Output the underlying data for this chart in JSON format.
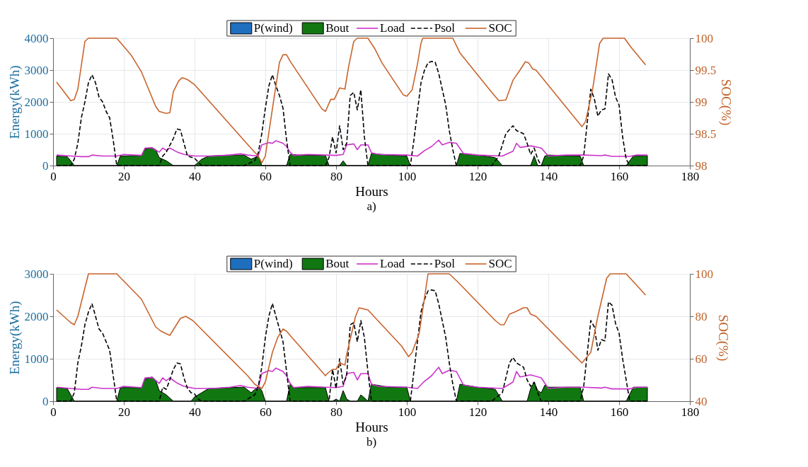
{
  "chart_data": [
    {
      "type": "line",
      "xlabel": "Hours",
      "ylabel": "Energy(kWh)",
      "y2label": "SOC(%)",
      "annotations": [
        "a)"
      ],
      "xlim": [
        0,
        180
      ],
      "xticks": [
        0,
        20,
        40,
        60,
        80,
        100,
        120,
        140,
        160,
        180
      ],
      "ylim": [
        0,
        4000
      ],
      "yticks": [
        0,
        1000,
        2000,
        3000,
        4000
      ],
      "y2lim": [
        98,
        100
      ],
      "y2ticks": [
        98,
        98.5,
        99,
        99.5,
        100
      ],
      "grid": true,
      "legend": "top",
      "series": [
        {
          "name": "P(wind)",
          "type": "area",
          "color": "#1f6fbf"
        },
        {
          "name": "Bout",
          "type": "area",
          "color": "#117711",
          "x": [
            1,
            4,
            5,
            6,
            18,
            19,
            25,
            26,
            28,
            29,
            30,
            32,
            34,
            40,
            42,
            44,
            50,
            54,
            56,
            58,
            59,
            66,
            67,
            70,
            77,
            78,
            81,
            82,
            83,
            89,
            90,
            95,
            100,
            101,
            114,
            115,
            120,
            125,
            127,
            135,
            136,
            137,
            138,
            139,
            140,
            149,
            150,
            162,
            164,
            168
          ],
          "values": [
            300,
            280,
            150,
            0,
            0,
            300,
            320,
            520,
            560,
            500,
            250,
            150,
            0,
            0,
            200,
            300,
            330,
            330,
            200,
            300,
            0,
            0,
            350,
            330,
            320,
            0,
            0,
            150,
            0,
            0,
            380,
            330,
            300,
            0,
            0,
            380,
            330,
            250,
            0,
            0,
            300,
            0,
            0,
            300,
            330,
            300,
            0,
            0,
            300,
            320
          ]
        },
        {
          "name": "Load",
          "color": "#cc33cc",
          "line_style": "solid",
          "x": [
            1,
            5,
            8,
            10,
            11,
            14,
            18,
            20,
            25,
            26,
            28,
            30,
            31,
            32,
            33,
            35,
            37,
            40,
            45,
            50,
            53,
            55,
            58,
            59,
            61,
            62,
            63,
            65,
            66,
            67,
            68,
            72,
            77,
            80,
            82,
            83,
            85,
            86,
            87,
            89,
            90,
            92,
            100,
            103,
            105,
            107,
            109,
            110,
            112,
            114,
            116,
            120,
            127,
            130,
            131,
            132,
            135,
            138,
            140,
            145,
            150,
            155,
            156,
            158,
            163,
            165,
            168
          ],
          "values": [
            330,
            300,
            280,
            280,
            330,
            300,
            300,
            350,
            320,
            550,
            560,
            420,
            550,
            480,
            550,
            430,
            350,
            300,
            300,
            330,
            370,
            330,
            300,
            650,
            720,
            700,
            780,
            700,
            600,
            420,
            320,
            350,
            330,
            320,
            350,
            650,
            680,
            500,
            650,
            650,
            400,
            350,
            330,
            300,
            470,
            600,
            800,
            650,
            730,
            700,
            380,
            330,
            300,
            450,
            700,
            570,
            620,
            550,
            300,
            330,
            330,
            310,
            330,
            290,
            290,
            330,
            330
          ]
        },
        {
          "name": "Psol",
          "color": "#000000",
          "line_style": "dashed",
          "x": [
            1,
            5,
            6,
            7,
            8,
            9,
            10,
            11,
            12,
            13,
            14,
            15,
            16,
            17,
            18,
            30,
            31,
            32,
            34,
            35,
            36,
            37,
            38,
            40,
            42,
            54,
            55,
            57,
            58,
            59,
            60,
            61,
            62,
            63,
            64,
            65,
            66,
            67,
            77,
            78,
            79,
            80,
            81,
            82,
            83,
            84,
            85,
            86,
            87,
            88,
            89,
            101,
            102,
            103,
            104,
            105,
            106,
            107,
            108,
            109,
            110,
            111,
            112,
            113,
            114,
            124,
            126,
            128,
            130,
            131,
            133,
            134,
            135,
            136,
            137,
            138,
            149,
            150,
            152,
            153,
            154,
            155,
            156,
            157,
            158,
            159,
            160,
            161,
            162,
            163,
            168
          ],
          "values": [
            0,
            0,
            200,
            700,
            1500,
            2000,
            2600,
            2850,
            2600,
            2150,
            2000,
            1700,
            1500,
            800,
            0,
            0,
            300,
            420,
            850,
            1150,
            1120,
            700,
            300,
            230,
            0,
            0,
            50,
            150,
            400,
            1000,
            1800,
            2500,
            2850,
            2500,
            2200,
            1800,
            800,
            0,
            0,
            250,
            900,
            400,
            1250,
            500,
            700,
            2200,
            2300,
            1750,
            2380,
            900,
            0,
            0,
            800,
            1700,
            2600,
            3000,
            3230,
            3270,
            3250,
            2900,
            2400,
            1900,
            1100,
            500,
            0,
            0,
            300,
            1000,
            1250,
            1100,
            1000,
            700,
            350,
            550,
            200,
            0,
            0,
            300,
            2400,
            2100,
            1550,
            1750,
            1780,
            2880,
            2700,
            2150,
            1900,
            900,
            200,
            0,
            0
          ]
        },
        {
          "name": "SOC",
          "color": "#c8642d",
          "line_style": "solid",
          "axis": "y2",
          "x": [
            1,
            5,
            6,
            7,
            9,
            10,
            18,
            22,
            25,
            29,
            30,
            32,
            33,
            34,
            35.5,
            36.5,
            38,
            40,
            56,
            58,
            59,
            60,
            62,
            64,
            65,
            66,
            67,
            76,
            77,
            78.5,
            79.5,
            81,
            82.5,
            83.5,
            85,
            86,
            89,
            91,
            93,
            99,
            100,
            101.5,
            103,
            104,
            104.5,
            113,
            115,
            124,
            126,
            128,
            130,
            132,
            133.5,
            134.5,
            135.5,
            136.5,
            149.5,
            150.5,
            152.5,
            154.5,
            155.5,
            161.5,
            163.5,
            167.5
          ],
          "values": [
            99.31,
            99.02,
            99.04,
            99.2,
            99.95,
            100,
            100,
            99.74,
            99.47,
            98.93,
            98.85,
            98.82,
            98.83,
            99.16,
            99.33,
            99.38,
            99.35,
            99.27,
            98.27,
            98.15,
            98.04,
            98.15,
            98.89,
            99.62,
            99.74,
            99.74,
            99.64,
            98.89,
            98.85,
            99.04,
            99.04,
            99.22,
            99.2,
            99.54,
            99.95,
            100,
            100,
            99.83,
            99.61,
            99.11,
            99.09,
            99.19,
            99.59,
            99.92,
            100,
            100,
            99.77,
            99.15,
            99.02,
            99.03,
            99.34,
            99.5,
            99.63,
            99.61,
            99.52,
            99.5,
            98.61,
            98.69,
            99.19,
            99.92,
            100,
            100,
            99.85,
            99.58
          ]
        }
      ]
    },
    {
      "type": "line",
      "xlabel": "Hours",
      "ylabel": "Energy(kWh)",
      "y2label": "SOC(%)",
      "annotations": [
        "b)"
      ],
      "xlim": [
        0,
        180
      ],
      "xticks": [
        0,
        20,
        40,
        60,
        80,
        100,
        120,
        140,
        160,
        180
      ],
      "ylim": [
        0,
        3000
      ],
      "yticks": [
        0,
        1000,
        2000,
        3000
      ],
      "y2lim": [
        40,
        100
      ],
      "y2ticks": [
        40,
        60,
        80,
        100
      ],
      "grid": true,
      "legend": "top",
      "series": [
        {
          "name": "P(wind)",
          "type": "area",
          "color": "#1f6fbf"
        },
        {
          "name": "Bout",
          "type": "area",
          "color": "#117711",
          "x": [
            1,
            4,
            5,
            6,
            18,
            19,
            25,
            26,
            28,
            29,
            30,
            32,
            34,
            39,
            40,
            42,
            44,
            50,
            54,
            56,
            58,
            59,
            60,
            66,
            67,
            68,
            77,
            78,
            79,
            80,
            81,
            82,
            83,
            84,
            86,
            87,
            88,
            89,
            90,
            95,
            100,
            101,
            114,
            115,
            120,
            125,
            127,
            134,
            135,
            136,
            137,
            138,
            139,
            140,
            149,
            150,
            162,
            164,
            168
          ],
          "values": [
            320,
            300,
            150,
            0,
            0,
            320,
            320,
            520,
            570,
            500,
            250,
            150,
            0,
            0,
            100,
            200,
            300,
            320,
            330,
            200,
            350,
            250,
            0,
            0,
            400,
            320,
            320,
            0,
            0,
            50,
            0,
            250,
            50,
            0,
            0,
            150,
            80,
            0,
            400,
            330,
            330,
            0,
            0,
            400,
            330,
            280,
            0,
            0,
            300,
            450,
            250,
            200,
            380,
            330,
            330,
            0,
            0,
            330,
            330
          ]
        },
        {
          "name": "Load",
          "color": "#cc33cc",
          "line_style": "solid",
          "x": [
            1,
            5,
            8,
            10,
            11,
            14,
            18,
            20,
            25,
            26,
            28,
            30,
            31,
            32,
            33,
            35,
            37,
            40,
            45,
            50,
            53,
            55,
            58,
            59,
            61,
            62,
            63,
            65,
            66,
            67,
            68,
            72,
            77,
            80,
            82,
            83,
            85,
            86,
            87,
            89,
            90,
            92,
            100,
            103,
            105,
            107,
            109,
            110,
            112,
            114,
            116,
            120,
            127,
            130,
            131,
            132,
            135,
            138,
            140,
            145,
            150,
            155,
            156,
            158,
            163,
            165,
            168
          ],
          "values": [
            330,
            300,
            280,
            280,
            330,
            300,
            300,
            350,
            320,
            550,
            560,
            420,
            550,
            480,
            550,
            430,
            350,
            300,
            300,
            330,
            370,
            330,
            300,
            650,
            720,
            700,
            780,
            700,
            600,
            420,
            320,
            350,
            330,
            320,
            350,
            650,
            680,
            500,
            650,
            650,
            400,
            350,
            330,
            300,
            470,
            600,
            800,
            650,
            730,
            700,
            380,
            330,
            300,
            450,
            700,
            570,
            620,
            550,
            300,
            330,
            330,
            310,
            330,
            290,
            290,
            330,
            330
          ]
        },
        {
          "name": "Psol",
          "color": "#000000",
          "line_style": "dashed",
          "x": [
            1,
            5,
            6,
            7,
            8,
            9,
            10,
            11,
            12,
            13,
            14,
            15,
            16,
            17,
            18,
            30,
            31,
            32,
            33,
            34,
            35,
            36,
            37,
            38,
            39,
            40,
            41,
            42,
            54,
            55,
            57,
            58,
            59,
            60,
            61,
            62,
            63,
            64,
            65,
            66,
            67,
            78,
            79,
            80,
            81,
            82,
            83,
            84,
            85,
            86,
            87,
            88,
            89,
            90,
            101,
            102,
            103,
            104,
            105,
            106,
            107,
            108,
            109,
            110,
            111,
            112,
            113,
            114,
            124,
            127,
            129,
            130,
            131,
            133,
            134,
            135,
            136,
            137,
            138,
            149,
            150,
            152,
            153,
            154,
            155,
            156,
            157,
            158,
            159,
            160,
            161,
            162,
            163,
            168
          ],
          "values": [
            0,
            0,
            200,
            900,
            1300,
            1800,
            2100,
            2300,
            2000,
            1700,
            1600,
            1400,
            1200,
            600,
            0,
            0,
            330,
            280,
            500,
            750,
            900,
            880,
            550,
            300,
            200,
            170,
            50,
            0,
            0,
            50,
            150,
            350,
            800,
            1500,
            2000,
            2300,
            2000,
            1700,
            1400,
            700,
            0,
            0,
            750,
            300,
            1000,
            400,
            600,
            1800,
            1850,
            1400,
            1900,
            1500,
            700,
            0,
            0,
            700,
            1400,
            2100,
            2400,
            2600,
            2620,
            2600,
            2300,
            1900,
            1500,
            900,
            400,
            0,
            0,
            200,
            900,
            1030,
            900,
            800,
            500,
            350,
            450,
            200,
            0,
            0,
            350,
            1900,
            1750,
            1200,
            1450,
            1420,
            2340,
            2260,
            1830,
            1600,
            1000,
            500,
            0,
            0
          ]
        },
        {
          "name": "SOC",
          "color": "#c8642d",
          "line_style": "solid",
          "axis": "y2",
          "x": [
            1,
            5,
            6,
            7,
            10,
            18,
            21.5,
            25,
            29,
            30.5,
            33,
            34.5,
            36,
            37.5,
            39.5,
            55,
            57,
            59,
            60,
            62,
            63.5,
            65,
            66,
            67,
            77,
            77.5,
            79,
            80,
            81,
            82.5,
            83,
            85.5,
            86.5,
            89,
            98.5,
            100.5,
            101.5,
            103.5,
            106,
            112,
            114.5,
            125,
            126.5,
            127.5,
            129,
            130.5,
            133,
            134,
            135,
            136.5,
            149.5,
            150,
            152,
            154,
            156.5,
            157.5,
            162,
            167.5
          ],
          "values": [
            83,
            77,
            76,
            80,
            100,
            100,
            94,
            88,
            75,
            73,
            71,
            75,
            79,
            80,
            78,
            52,
            48,
            46,
            49,
            63,
            70,
            74,
            73,
            71,
            52,
            53,
            55,
            55,
            58,
            57,
            62,
            80,
            84,
            83,
            66,
            61,
            63,
            72,
            100,
            100,
            96,
            78,
            76,
            76,
            81,
            82,
            84,
            84,
            81,
            80,
            58,
            59,
            63,
            80,
            98,
            100,
            100,
            90
          ]
        }
      ]
    }
  ]
}
